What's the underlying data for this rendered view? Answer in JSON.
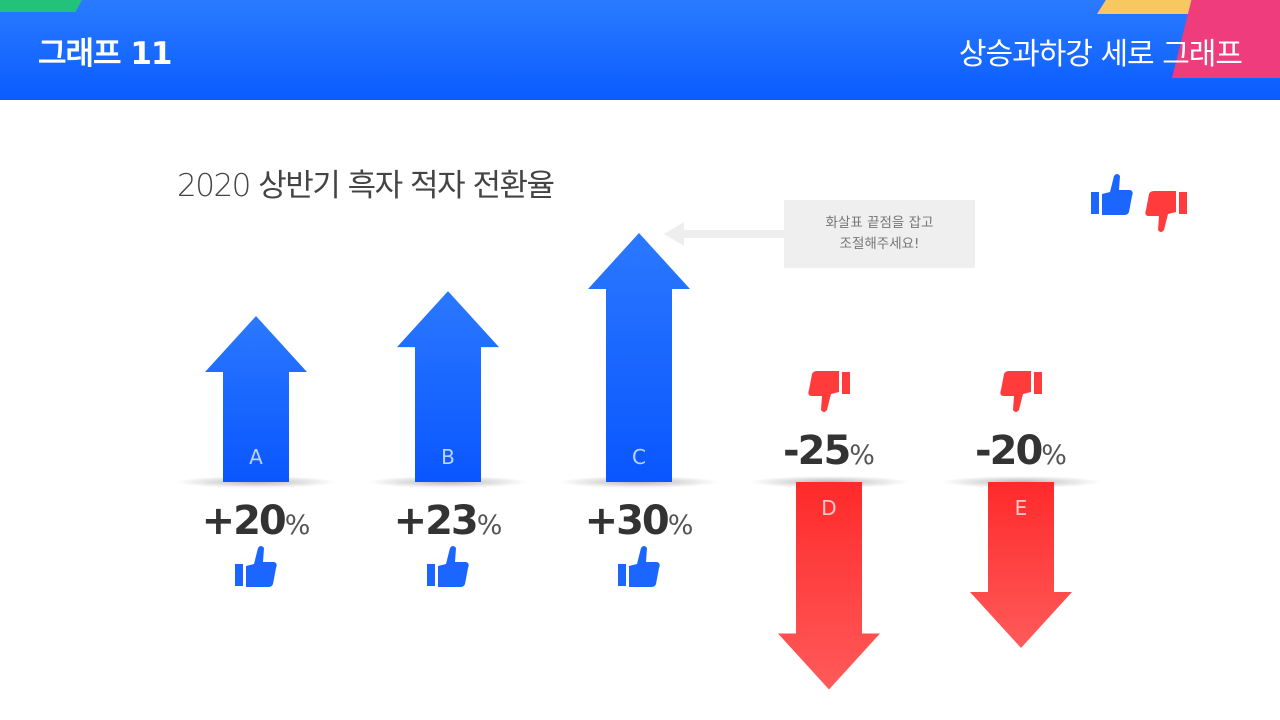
{
  "header": {
    "title": "그래프 11",
    "subtitle": "상승과하강 세로 그래프"
  },
  "hint": {
    "line1": "화살표 끝점을 잡고",
    "line2": "조절해주세요!"
  },
  "legend": {
    "up_icon": "thumbs-up-icon",
    "down_icon": "thumbs-down-icon"
  },
  "colors": {
    "up": "#1a66ff",
    "down": "#ff3b3b",
    "header": "#0a5cff"
  },
  "chart_data": {
    "type": "bar",
    "title": "2020 상반기 흑자 적자 전환율",
    "categories": [
      "A",
      "B",
      "C",
      "D",
      "E"
    ],
    "values": [
      20,
      23,
      30,
      -25,
      -20
    ],
    "value_labels": [
      "+20",
      "+23",
      "+30",
      "-25",
      "-20"
    ],
    "unit": "%",
    "icons": [
      "thumbs-up-icon",
      "thumbs-up-icon",
      "thumbs-up-icon",
      "thumbs-down-icon",
      "thumbs-down-icon"
    ],
    "xlabel": "",
    "ylabel": "",
    "grid": false,
    "legend": "top-right"
  }
}
